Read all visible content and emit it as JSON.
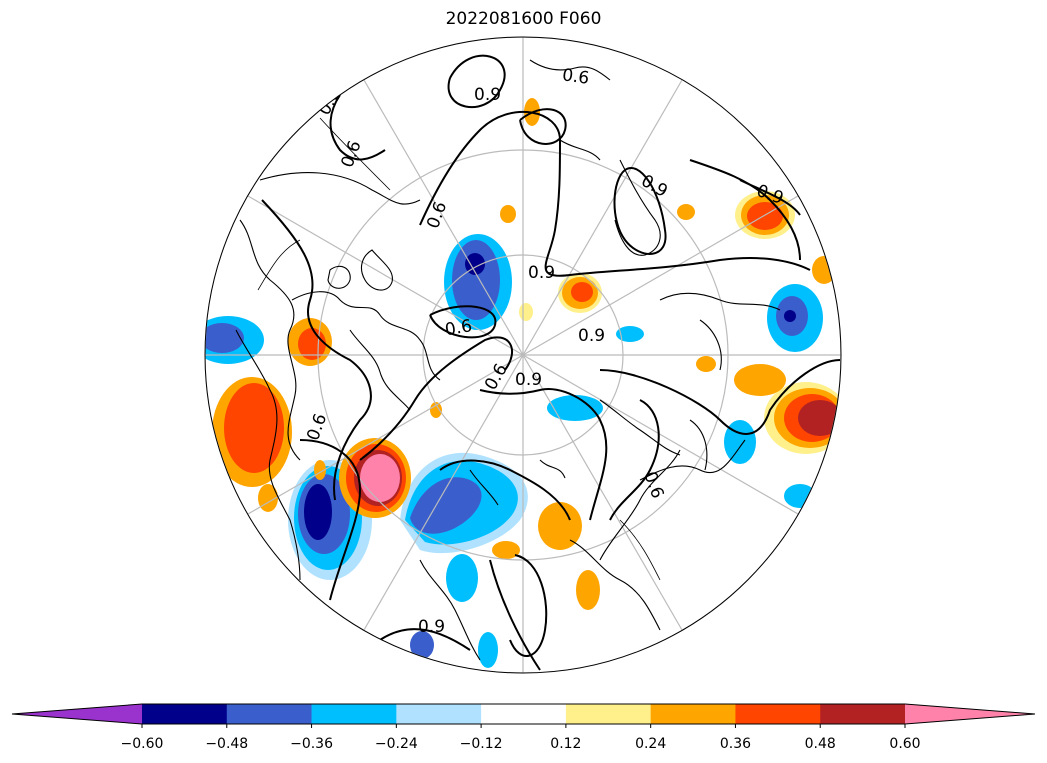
{
  "title": "2022081600 F060",
  "map": {
    "projection": "north-polar-stereographic",
    "contour_levels": [
      "0.6",
      "0.9"
    ],
    "contour_labels": [
      {
        "text": "0.6"
      },
      {
        "text": "0.9"
      },
      {
        "text": "0.6"
      },
      {
        "text": "0.9"
      },
      {
        "text": "0.6"
      },
      {
        "text": "0.9"
      },
      {
        "text": "0.6"
      },
      {
        "text": "0.9"
      },
      {
        "text": "0.6"
      },
      {
        "text": "0.9"
      },
      {
        "text": "0.6"
      },
      {
        "text": "0.9"
      },
      {
        "text": "0.6"
      },
      {
        "text": "0.6"
      },
      {
        "text": "0.9"
      }
    ]
  },
  "colorbar": {
    "extend": "both",
    "colors": [
      "#9a32cd",
      "#00008b",
      "#3a5fcd",
      "#00bfff",
      "#b0e2ff",
      "#ffffff",
      "#fff08c",
      "#ffa500",
      "#ff4500",
      "#b22222",
      "#ff82ab"
    ],
    "tick_labels": [
      "−0.60",
      "−0.48",
      "−0.36",
      "−0.24",
      "−0.12",
      "0.12",
      "0.24",
      "0.36",
      "0.48",
      "0.60"
    ]
  }
}
